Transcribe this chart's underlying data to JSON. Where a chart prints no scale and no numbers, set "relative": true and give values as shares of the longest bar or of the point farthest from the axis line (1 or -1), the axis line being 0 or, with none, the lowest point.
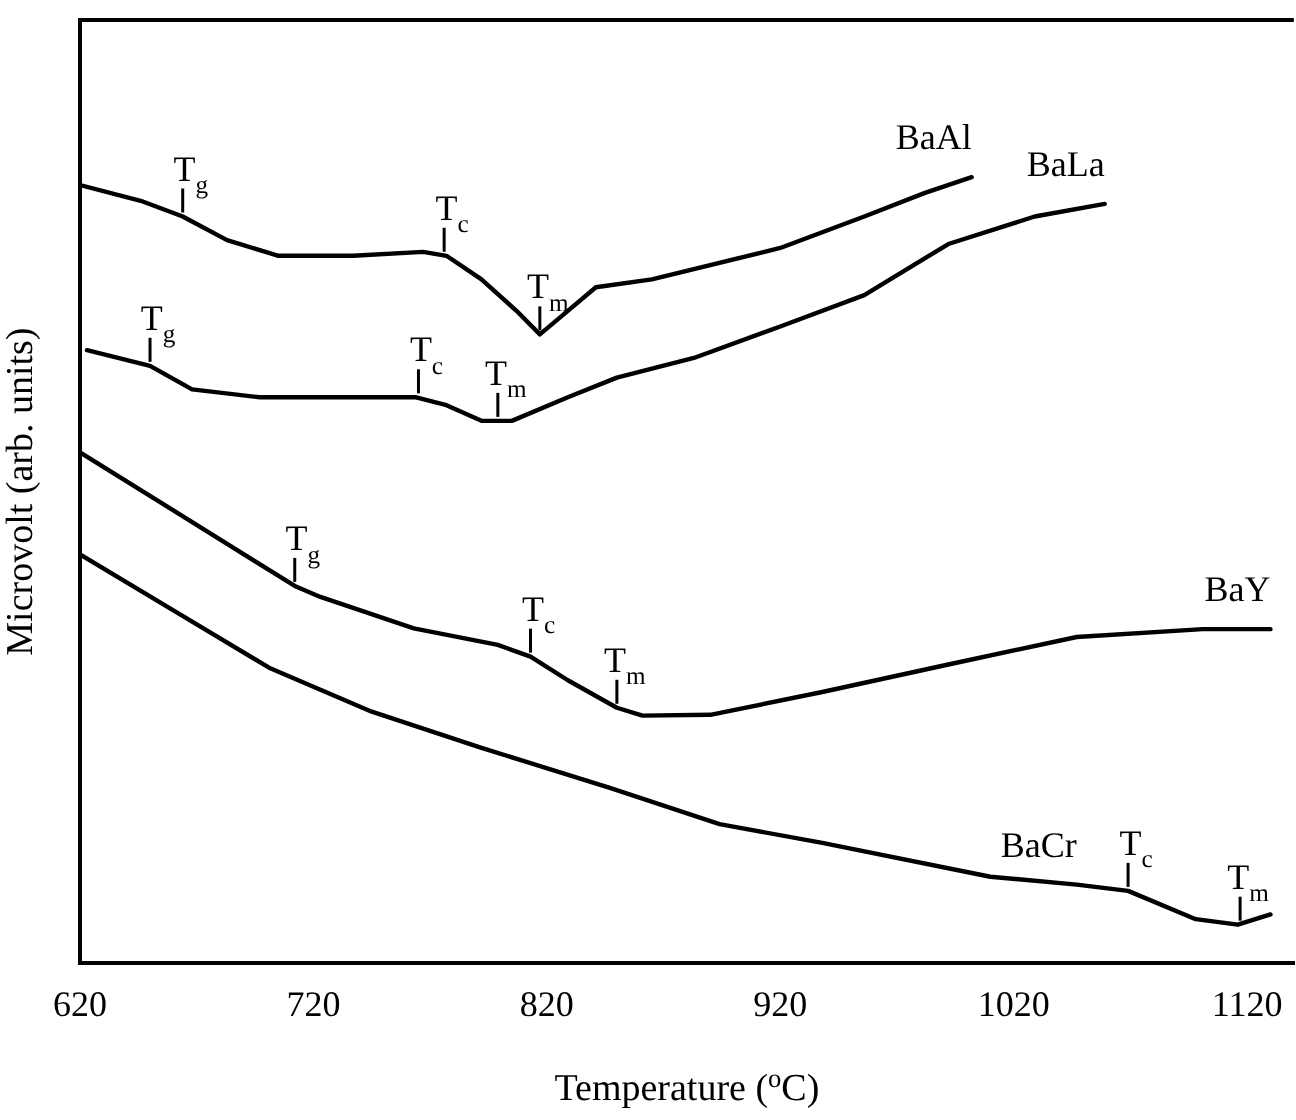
{
  "chart_data": {
    "type": "line",
    "relative": true,
    "xlabel": "Temperature ($^{o}$C)",
    "ylabel": "Microvolt (arb. units)",
    "xlim": [
      620,
      1140
    ],
    "xticks": [
      620,
      720,
      820,
      920,
      1020,
      1120
    ],
    "grid": false,
    "legend": false,
    "marker": "none",
    "line_style": "solid",
    "series": [
      {
        "name": "BaAl",
        "color": "#000000",
        "x": [
          620,
          646,
          664,
          683,
          705,
          737,
          767,
          777,
          792,
          807,
          817,
          829,
          841,
          865,
          920,
          956,
          982,
          1002
        ],
        "values": [
          0.99,
          0.97,
          0.95,
          0.92,
          0.9,
          0.9,
          0.905,
          0.9,
          0.87,
          0.83,
          0.8,
          0.83,
          0.86,
          0.87,
          0.91,
          0.95,
          0.98,
          1.0
        ]
      },
      {
        "name": "BaLa",
        "color": "#000000",
        "x": [
          623,
          650,
          668,
          697,
          741,
          764,
          777,
          792,
          805,
          829,
          850,
          883,
          920,
          956,
          992,
          1029,
          1059
        ],
        "values": [
          0.78,
          0.76,
          0.73,
          0.72,
          0.72,
          0.72,
          0.71,
          0.69,
          0.69,
          0.72,
          0.745,
          0.77,
          0.81,
          0.85,
          0.915,
          0.95,
          0.966
        ]
      },
      {
        "name": "BaY",
        "color": "#000000",
        "x": [
          620,
          712,
          723,
          763,
          799,
          813,
          829,
          850,
          861,
          890,
          938,
          992,
          1047,
          1101,
          1130
        ],
        "values": [
          0.65,
          0.48,
          0.466,
          0.426,
          0.405,
          0.39,
          0.36,
          0.325,
          0.315,
          0.316,
          0.345,
          0.38,
          0.415,
          0.425,
          0.425
        ]
      },
      {
        "name": "BaCr",
        "color": "#000000",
        "x": [
          620,
          665,
          701,
          745,
          792,
          847,
          894,
          938,
          1010,
          1047,
          1069,
          1098,
          1116,
          1130
        ],
        "values": [
          0.52,
          0.44,
          0.376,
          0.32,
          0.274,
          0.223,
          0.177,
          0.153,
          0.11,
          0.1,
          0.092,
          0.056,
          0.049,
          0.062
        ]
      }
    ],
    "annotations": [
      {
        "text": "T$_{g}$",
        "x": 664,
        "y": 0.95
      },
      {
        "text": "T$_{c}$",
        "x": 776,
        "y": 0.9
      },
      {
        "text": "T$_{m}$",
        "x": 817,
        "y": 0.8
      },
      {
        "text": "T$_{g}$",
        "x": 650,
        "y": 0.76
      },
      {
        "text": "T$_{c}$",
        "x": 765,
        "y": 0.72
      },
      {
        "text": "T$_{m}$",
        "x": 799,
        "y": 0.69
      },
      {
        "text": "T$_{g}$",
        "x": 712,
        "y": 0.48
      },
      {
        "text": "T$_{c}$",
        "x": 813,
        "y": 0.39
      },
      {
        "text": "T$_{m}$",
        "x": 850,
        "y": 0.325
      },
      {
        "text": "T$_{c}$",
        "x": 1069,
        "y": 0.092
      },
      {
        "text": "T$_{m}$",
        "x": 1117,
        "y": 0.049
      }
    ]
  }
}
